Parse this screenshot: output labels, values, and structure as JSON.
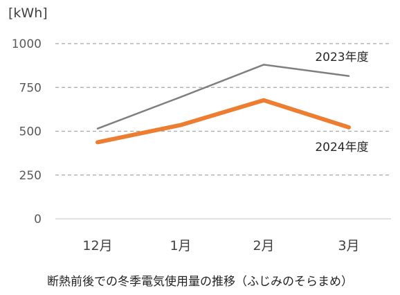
{
  "chart_data": {
    "type": "line",
    "unit_label": "[kWh]",
    "title": "断熱前後での冬季電気使用量の推移（ふじみのそらまめ）",
    "categories": [
      "12月",
      "1月",
      "2月",
      "3月"
    ],
    "yticks": [
      "0",
      "250",
      "500",
      "750",
      "1000"
    ],
    "ylim": [
      0,
      1000
    ],
    "grid": true,
    "series": [
      {
        "name": "2023年度",
        "values": [
          515,
          695,
          880,
          815
        ],
        "color": "#7f7f7f",
        "emphasis": false
      },
      {
        "name": "2024年度",
        "values": [
          437,
          535,
          677,
          522
        ],
        "color": "#ed7d31",
        "emphasis": true
      }
    ]
  }
}
